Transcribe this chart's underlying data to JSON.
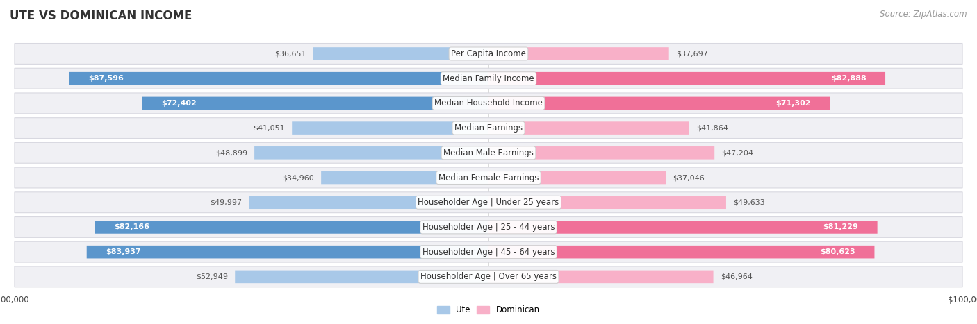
{
  "title": "UTE VS DOMINICAN INCOME",
  "source": "Source: ZipAtlas.com",
  "categories": [
    "Per Capita Income",
    "Median Family Income",
    "Median Household Income",
    "Median Earnings",
    "Median Male Earnings",
    "Median Female Earnings",
    "Householder Age | Under 25 years",
    "Householder Age | 25 - 44 years",
    "Householder Age | 45 - 64 years",
    "Householder Age | Over 65 years"
  ],
  "ute_values": [
    36651,
    87596,
    72402,
    41051,
    48899,
    34960,
    49997,
    82166,
    83937,
    52949
  ],
  "dominican_values": [
    37697,
    82888,
    71302,
    41864,
    47204,
    37046,
    49633,
    81229,
    80623,
    46964
  ],
  "ute_light_color": "#a8c8e8",
  "ute_dark_color": "#5b96cc",
  "dominican_light_color": "#f8b0c8",
  "dominican_dark_color": "#f07098",
  "row_bg_color": "#f0f0f4",
  "row_border_color": "#d8d8e0",
  "axis_max": 100000,
  "label_fontsize": 8.5,
  "title_fontsize": 12,
  "source_fontsize": 8.5,
  "value_fontsize": 8.0,
  "large_threshold": 60000
}
